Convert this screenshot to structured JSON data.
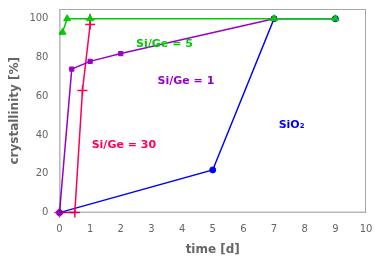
{
  "chart_data": {
    "type": "line",
    "xlabel": "time [d]",
    "ylabel": "crystallinity [%]",
    "xlim": [
      0,
      10
    ],
    "ylim": [
      0,
      105
    ],
    "xticks": [
      0,
      1,
      2,
      3,
      4,
      5,
      6,
      7,
      8,
      9,
      10
    ],
    "yticks": [
      0,
      20,
      40,
      60,
      80,
      100
    ],
    "grid": false,
    "series": [
      {
        "color": "#00cc00",
        "marker": "triangle",
        "x": [
          0.1,
          0.25,
          1.0,
          7.0,
          9.0
        ],
        "values": [
          93,
          100,
          100,
          100,
          100
        ]
      },
      {
        "color": "#9900cc",
        "marker": "square",
        "x": [
          0.0,
          0.4,
          1.0,
          2.0,
          7.0
        ],
        "values": [
          0,
          74,
          78,
          82,
          100
        ]
      },
      {
        "color": "#ff0055",
        "marker": "plus",
        "x": [
          0.0,
          0.5,
          0.75,
          1.0,
          1.0
        ],
        "values": [
          0,
          0,
          63,
          97,
          100
        ]
      },
      {
        "color": "#0000ff",
        "marker": "circle",
        "x": [
          0.0,
          5.0,
          7.0,
          9.0
        ],
        "values": [
          0,
          22,
          100,
          100
        ]
      }
    ],
    "annotations": [
      {
        "text": "Si/Ge = 5",
        "x": 2.5,
        "y": 87,
        "color": "#00cc00"
      },
      {
        "text": "Si/Ge = 1",
        "x": 3.2,
        "y": 68,
        "color": "#9900cc"
      },
      {
        "text": "Si/Ge = 30",
        "x": 1.05,
        "y": 35,
        "color": "#ff0055"
      },
      {
        "text": "SiO₂",
        "x": 7.15,
        "y": 45,
        "color": "#0000ff"
      }
    ]
  }
}
